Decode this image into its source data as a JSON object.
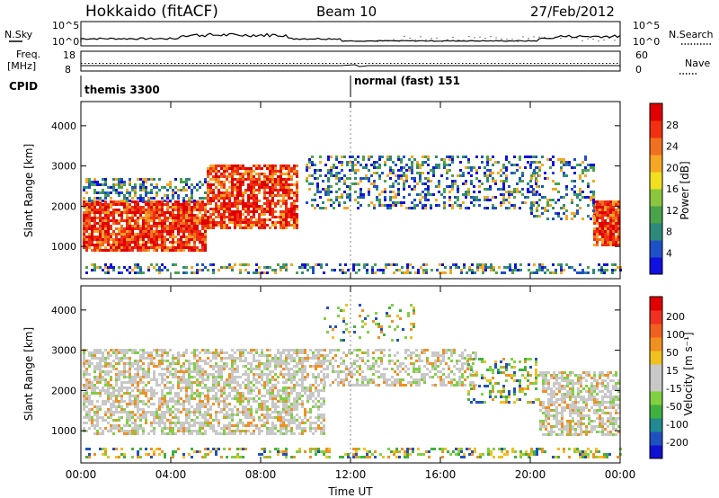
{
  "header": {
    "site": "Hokkaido (fitACF)",
    "beam": "Beam 10",
    "date": "27/Feb/2012"
  },
  "top_panels": {
    "nsky_label": "N.Sky",
    "nsky_ticks": [
      "10^5",
      "10^0"
    ],
    "nsearch_label": "N.Search",
    "nsearch_ticks": [
      "10^5",
      "10^0"
    ],
    "freq_label_line1": "Freq.",
    "freq_label_line2": "[MHz]",
    "freq_ticks": [
      "18",
      "8"
    ],
    "nave_label": "Nave",
    "nave_ticks": [
      "60",
      "0"
    ],
    "cpid_label": "CPID",
    "cpid_segments": [
      {
        "label": "themis 3300",
        "start": "00:00"
      },
      {
        "label": "normal (fast) 151",
        "start": "12:00"
      }
    ]
  },
  "chart_data": [
    {
      "type": "heatmap",
      "name": "power",
      "ylabel": "Slant Range [km]",
      "yticks": [
        "1000",
        "2000",
        "3000",
        "4000"
      ],
      "ylim": [
        200,
        4600
      ],
      "xticks": [
        "00:00",
        "04:00",
        "08:00",
        "12:00",
        "16:00",
        "20:00",
        "00:00"
      ],
      "xlim": [
        0,
        24
      ],
      "colorbar": {
        "label": "Power [dB]",
        "ticks": [
          "4",
          "8",
          "12",
          "16",
          "20",
          "24",
          "28"
        ],
        "colors": [
          "#1010e0",
          "#1e50c8",
          "#2d8a7a",
          "#4aa34a",
          "#8cc63f",
          "#f0e020",
          "#f5a623",
          "#f07020",
          "#f03010",
          "#e00000"
        ]
      }
    },
    {
      "type": "heatmap",
      "name": "velocity",
      "ylabel": "Slant Range [km]",
      "yticks": [
        "1000",
        "2000",
        "3000",
        "4000"
      ],
      "ylim": [
        200,
        4600
      ],
      "xticks": [
        "00:00",
        "04:00",
        "08:00",
        "12:00",
        "16:00",
        "20:00",
        "00:00"
      ],
      "xlim": [
        0,
        24
      ],
      "xlabel": "Time UT",
      "colorbar": {
        "label": "Velocity [m s⁻¹]",
        "ticks": [
          "200",
          "100",
          "50",
          "15",
          "-15",
          "-50",
          "-100",
          "-200"
        ],
        "colors": [
          "#1010d0",
          "#2050c0",
          "#208a90",
          "#40b040",
          "#80d040",
          "#c8c8c8",
          "#c8c8c8",
          "#f0c020",
          "#f09020",
          "#f06020",
          "#f03020",
          "#e00000"
        ]
      }
    }
  ]
}
